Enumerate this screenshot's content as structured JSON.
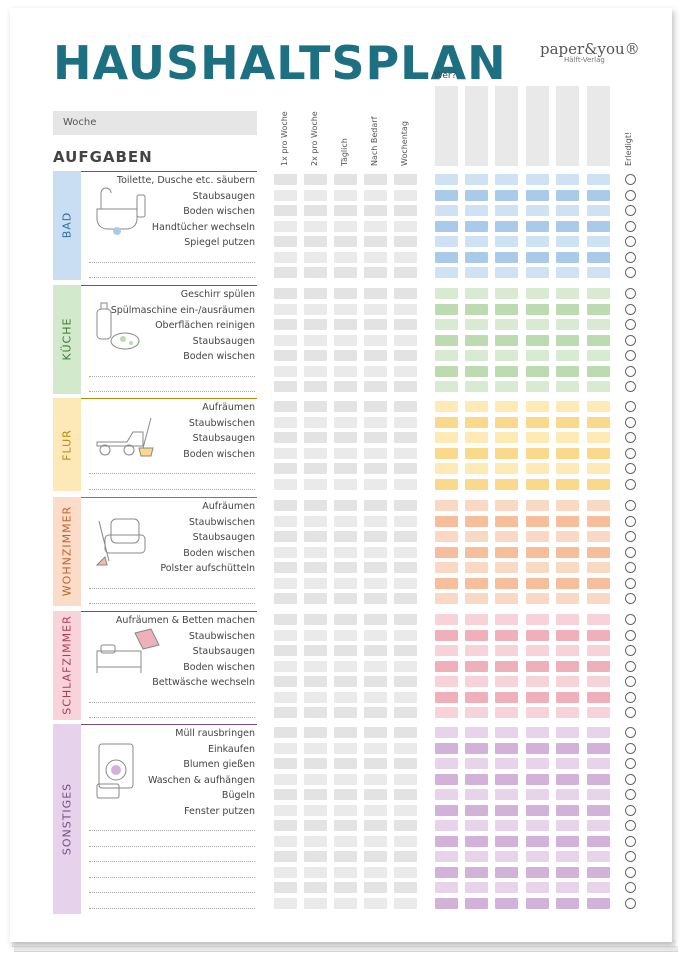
{
  "title": "HAUSHALTSPLAN",
  "brand": {
    "name": "paper&you®",
    "sub": "Hälft-Verlag"
  },
  "woche_label": "Woche",
  "aufgaben_label": "AUFGABEN",
  "wer_label": "Wer?",
  "erledigt_label": "Erledigt!",
  "frequency_columns": [
    "1x pro Woche",
    "2x pro Woche",
    "Täglich",
    "Nach Bedarf",
    "Wochentag"
  ],
  "sections": [
    {
      "name": "BAD",
      "color_light": "#cfe2f3",
      "color_dark": "#a9cbe9",
      "band": "#c9def3",
      "label_color": "#2c6fa6",
      "illustration": "bathtub-icon",
      "tasks": [
        "Toilette, Dusche etc. säubern",
        "Staubsaugen",
        "Boden wischen",
        "Handtücher wechseln",
        "Spiegel putzen"
      ]
    },
    {
      "name": "KÜCHE",
      "color_light": "#d9ead3",
      "color_dark": "#bcdbb0",
      "band": "#d3e9cc",
      "label_color": "#3c7a35",
      "illustration": "cleaning-bottle-icon",
      "tasks": [
        "Geschirr spülen",
        "Spülmaschine ein-/ausräumen",
        "Oberflächen reinigen",
        "Staubsaugen",
        "Boden wischen"
      ]
    },
    {
      "name": "FLUR",
      "color_light": "#fdeab5",
      "color_dark": "#fbd98a",
      "band": "#fde9b8",
      "label_color": "#b8860b",
      "illustration": "toy-car-icon",
      "tasks": [
        "Aufräumen",
        "Staubwischen",
        "Staubsaugen",
        "Boden wischen"
      ]
    },
    {
      "name": "WOHNZIMMER",
      "color_light": "#fad9c4",
      "color_dark": "#f6be9b",
      "band": "#fbdcc8",
      "label_color": "#c0622a",
      "illustration": "armchair-icon",
      "tasks": [
        "Aufräumen",
        "Staubwischen",
        "Staubsaugen",
        "Boden wischen",
        "Polster aufschütteln"
      ]
    },
    {
      "name": "SCHLAFZIMMER",
      "color_light": "#f7d2d8",
      "color_dark": "#f0b0bb",
      "band": "#f8d4da",
      "label_color": "#b03a52",
      "illustration": "bed-icon",
      "tasks": [
        "Aufräumen & Betten machen",
        "Staubwischen",
        "Staubsaugen",
        "Boden wischen",
        "Bettwäsche wechseln"
      ]
    },
    {
      "name": "SONSTIGES",
      "color_light": "#e7d3ea",
      "color_dark": "#d2b2d8",
      "band": "#e6d2ea",
      "label_color": "#7b4a86",
      "illustration": "washing-machine-icon",
      "tasks": [
        "Müll rausbringen",
        "Einkaufen",
        "Blumen gießen",
        "Waschen & aufhängen",
        "Bügeln",
        "Fenster putzen"
      ]
    }
  ]
}
